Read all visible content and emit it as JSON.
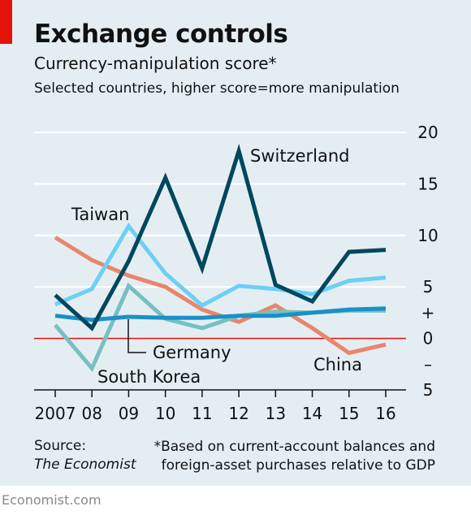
{
  "header": {
    "title": "Exchange controls",
    "subtitle": "Currency-manipulation score*",
    "note": "Selected countries, higher score=more manipulation"
  },
  "footer": {
    "source_label": "Source:",
    "source_name": "The Economist",
    "footnote_line1": "*Based on current-account balances and",
    "footnote_line2": "foreign-asset purchases relative to GDP",
    "brand": "Economist.com"
  },
  "colors": {
    "background": "#e4eef2",
    "accent": "#e3120b",
    "gridline": "#ffffff",
    "zero_line": "#e3120b"
  },
  "chart_data": {
    "type": "line",
    "x": [
      2007,
      2008,
      2009,
      2010,
      2011,
      2012,
      2013,
      2014,
      2015,
      2016
    ],
    "x_tick_labels": [
      "2007",
      "08",
      "09",
      "10",
      "11",
      "12",
      "13",
      "14",
      "15",
      "16"
    ],
    "ylim": [
      -5,
      20
    ],
    "y_ticks": [
      {
        "value": 20,
        "label": "20"
      },
      {
        "value": 15,
        "label": "15"
      },
      {
        "value": 10,
        "label": "10"
      },
      {
        "value": 5,
        "label": "5"
      },
      {
        "value": 2.5,
        "label": "+"
      },
      {
        "value": 0,
        "label": "0"
      },
      {
        "value": -2.5,
        "label": "–"
      },
      {
        "value": -5,
        "label": "5"
      }
    ],
    "series": [
      {
        "name": "Switzerland",
        "color": "#00475e",
        "values": [
          4.2,
          1.0,
          7.5,
          15.6,
          6.8,
          18.2,
          5.2,
          3.6,
          8.4,
          8.6
        ]
      },
      {
        "name": "Taiwan",
        "color": "#6ccff6",
        "values": [
          3.3,
          4.8,
          10.9,
          6.3,
          3.2,
          5.1,
          4.8,
          4.3,
          5.6,
          5.9
        ]
      },
      {
        "name": "Germany",
        "color": "#1b8fc8",
        "values": [
          2.2,
          1.8,
          2.1,
          2.0,
          2.0,
          2.2,
          2.2,
          2.5,
          2.8,
          2.9
        ]
      },
      {
        "name": "South Korea",
        "color": "#76c0c1",
        "values": [
          1.3,
          -2.9,
          5.1,
          1.9,
          1.0,
          2.2,
          2.6,
          2.5,
          2.7,
          2.7
        ]
      },
      {
        "name": "China",
        "color": "#e8866c",
        "values": [
          9.8,
          7.6,
          6.1,
          5.0,
          2.8,
          1.6,
          3.2,
          1.0,
          -1.4,
          -0.6
        ]
      }
    ],
    "annotations": [
      {
        "series": "Switzerland",
        "text": "Switzerland"
      },
      {
        "series": "Taiwan",
        "text": "Taiwan"
      },
      {
        "series": "Germany",
        "text": "Germany"
      },
      {
        "series": "South Korea",
        "text": "South Korea"
      },
      {
        "series": "China",
        "text": "China"
      }
    ]
  }
}
